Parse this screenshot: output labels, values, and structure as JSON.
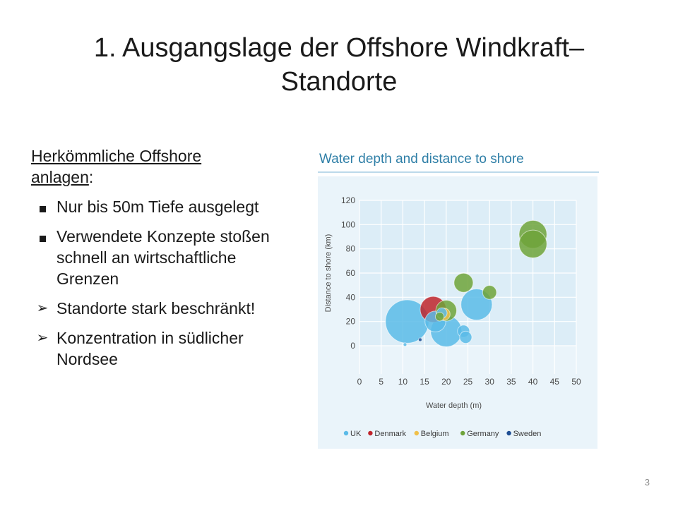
{
  "slide": {
    "title_line1": "1. Ausgangslage der Offshore Windkraft–",
    "title_line2": "Standorte",
    "heading_part1": "Herkömmliche Offshore",
    "heading_part2": "anlagen",
    "heading_suffix": ":",
    "bullets": [
      {
        "marker": "square",
        "text": "Nur bis 50m Tiefe ausgelegt"
      },
      {
        "marker": "square",
        "text": "Verwendete Konzepte stoßen schnell an wirtschaftliche Grenzen"
      },
      {
        "marker": "arrow",
        "text": "Standorte stark beschränkt!"
      },
      {
        "marker": "arrow",
        "text": "Konzentration in südlicher Nordsee"
      }
    ],
    "slide_number": "3"
  },
  "chart_data": {
    "type": "scatter",
    "title": "Water depth and distance to shore",
    "xlabel": "Water depth (m)",
    "ylabel": "Distance to shore (km)",
    "xlim": [
      0,
      50
    ],
    "ylim": [
      0,
      120
    ],
    "xticks": [
      0,
      5,
      10,
      15,
      20,
      25,
      30,
      35,
      40,
      45,
      50
    ],
    "yticks": [
      0,
      20,
      40,
      60,
      80,
      100,
      120
    ],
    "grid": true,
    "legend_position": "bottom",
    "colors": {
      "title": "#2f7fa7",
      "plot_background": "#dcedf7",
      "grid": "#ffffff",
      "UK": "#5bbbe8",
      "Denmark": "#c0242b",
      "Belgium": "#f0c04a",
      "Germany": "#6ea33a",
      "Sweden": "#1f4f94"
    },
    "series": [
      {
        "name": "UK",
        "points": [
          {
            "x": 11,
            "y": 20,
            "size": 50
          },
          {
            "x": 10.5,
            "y": 1,
            "size": 4
          },
          {
            "x": 17.5,
            "y": 20,
            "size": 24
          },
          {
            "x": 20,
            "y": 12,
            "size": 36
          },
          {
            "x": 24,
            "y": 12,
            "size": 14
          },
          {
            "x": 24.5,
            "y": 7,
            "size": 14
          },
          {
            "x": 27,
            "y": 34,
            "size": 36
          },
          {
            "x": 19,
            "y": 27,
            "size": 12
          }
        ]
      },
      {
        "name": "Denmark",
        "points": [
          {
            "x": 17,
            "y": 30,
            "size": 30
          }
        ]
      },
      {
        "name": "Belgium",
        "points": [
          {
            "x": 19.5,
            "y": 26,
            "size": 14
          }
        ]
      },
      {
        "name": "Germany",
        "points": [
          {
            "x": 24,
            "y": 52,
            "size": 22
          },
          {
            "x": 30,
            "y": 44,
            "size": 16
          },
          {
            "x": 20,
            "y": 29,
            "size": 24
          },
          {
            "x": 40,
            "y": 92,
            "size": 32
          },
          {
            "x": 40,
            "y": 84,
            "size": 32
          },
          {
            "x": 18.5,
            "y": 24,
            "size": 10
          }
        ]
      },
      {
        "name": "Sweden",
        "points": [
          {
            "x": 14,
            "y": 5,
            "size": 4
          }
        ]
      }
    ]
  }
}
